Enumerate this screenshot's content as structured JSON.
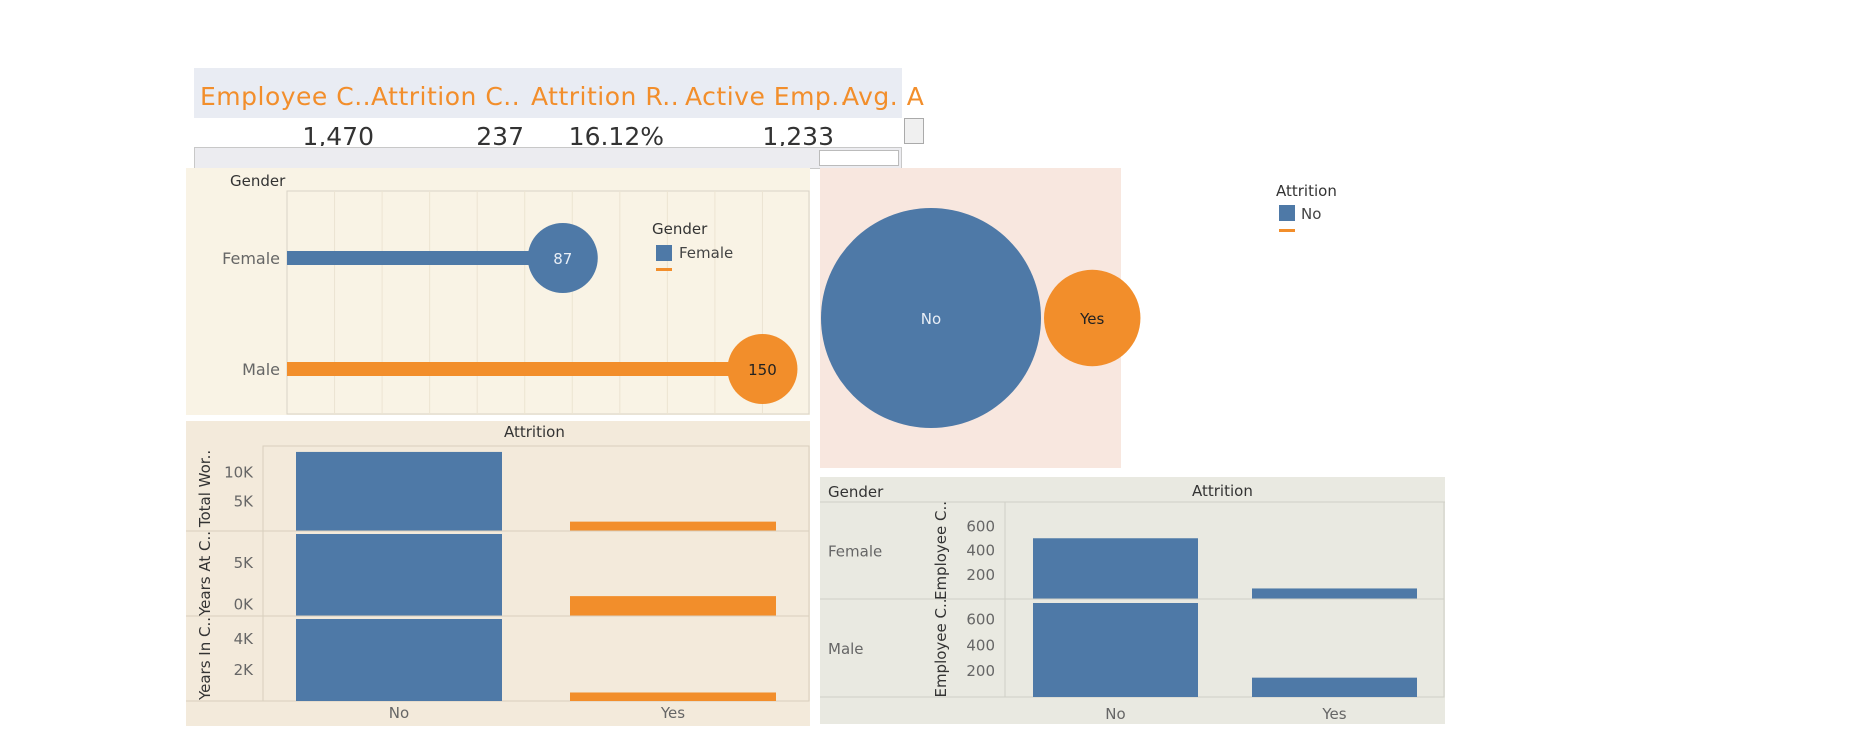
{
  "colors": {
    "no": "#4e79a7",
    "yes": "#f28e2b",
    "female": "#4e79a7",
    "male": "#f28e2b",
    "kpi_header": "#f28e2b"
  },
  "kpis": {
    "headers": [
      "Employee C..",
      "Attrition C..",
      "Attrition R..",
      "Active Emp..",
      "Avg. A"
    ],
    "values": [
      "1,470",
      "237",
      "16.12%",
      "1,233"
    ]
  },
  "legends": {
    "gender": {
      "title": "Gender",
      "item": "Female"
    },
    "attrition": {
      "title": "Attrition",
      "item": "No"
    }
  },
  "chart_data": [
    {
      "type": "bar",
      "orientation": "horizontal",
      "header": "Gender",
      "categories": [
        "Female",
        "Male"
      ],
      "values": [
        87,
        150
      ],
      "data_labels": [
        "87",
        "150"
      ],
      "xlim": [
        0,
        165
      ],
      "grid": true,
      "legend_position": "right"
    },
    {
      "type": "scatter",
      "subtype": "bubble",
      "categories": [
        "No",
        "Yes"
      ],
      "values": [
        1233,
        237
      ],
      "labels": [
        "No",
        "Yes"
      ],
      "legend_position": "top-right"
    },
    {
      "type": "bar",
      "header": "Attrition",
      "categories": [
        "No",
        "Yes"
      ],
      "panels": [
        {
          "ylabel": "Total Wor..",
          "ticks": [
            "10K",
            "5K"
          ],
          "ylim": [
            0,
            14000
          ],
          "tick_values": [
            10000,
            5000
          ],
          "values": [
            13500,
            1600
          ]
        },
        {
          "ylabel": "Years At C..",
          "ticks": [
            "5K",
            "0K"
          ],
          "ylim": [
            -1400,
            8500
          ],
          "tick_values": [
            5000,
            0
          ],
          "values": [
            8500,
            1000
          ]
        },
        {
          "ylabel": "Years In C..",
          "ticks": [
            "4K",
            "2K"
          ],
          "ylim": [
            0,
            5300
          ],
          "tick_values": [
            4000,
            2000
          ],
          "values": [
            5300,
            550
          ]
        }
      ]
    },
    {
      "type": "bar",
      "row_header": "Gender",
      "column_header": "Attrition",
      "categories": [
        "No",
        "Yes"
      ],
      "rows": [
        {
          "name": "Female",
          "ylabel": "Employee C..",
          "ticks": [
            "600",
            "400",
            "200"
          ],
          "tick_values": [
            600,
            400,
            200
          ],
          "ylim": [
            0,
            800
          ],
          "values": [
            501,
            87
          ]
        },
        {
          "name": "Male",
          "ylabel": "Employee C..",
          "ticks": [
            "600",
            "400",
            "200"
          ],
          "tick_values": [
            600,
            400,
            200
          ],
          "ylim": [
            0,
            760
          ],
          "values": [
            732,
            150
          ]
        }
      ]
    }
  ]
}
